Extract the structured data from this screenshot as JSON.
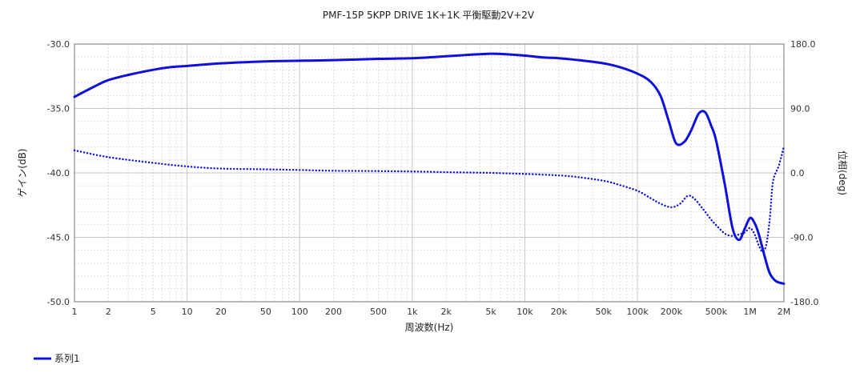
{
  "chart_data": {
    "type": "line",
    "title": "PMF-15P 5KPP DRIVE 1K+1K 平衡駆動2V+2V",
    "xlabel": "周波数(Hz)",
    "ylabel_left": "ゲイン(dB)",
    "ylabel_right": "位相(deg)",
    "x_scale": "log",
    "xlim": [
      1,
      2000000
    ],
    "ylim_left": [
      -50,
      -30
    ],
    "ylim_right": [
      -180,
      180
    ],
    "x_ticks": [
      {
        "value": 1,
        "label": "1"
      },
      {
        "value": 2,
        "label": "2"
      },
      {
        "value": 5,
        "label": "5"
      },
      {
        "value": 10,
        "label": "10"
      },
      {
        "value": 20,
        "label": "20"
      },
      {
        "value": 50,
        "label": "50"
      },
      {
        "value": 100,
        "label": "100"
      },
      {
        "value": 200,
        "label": "200"
      },
      {
        "value": 500,
        "label": "500"
      },
      {
        "value": 1000,
        "label": "1k"
      },
      {
        "value": 2000,
        "label": "2k"
      },
      {
        "value": 5000,
        "label": "5k"
      },
      {
        "value": 10000,
        "label": "10k"
      },
      {
        "value": 20000,
        "label": "20k"
      },
      {
        "value": 50000,
        "label": "50k"
      },
      {
        "value": 100000,
        "label": "100k"
      },
      {
        "value": 200000,
        "label": "200k"
      },
      {
        "value": 500000,
        "label": "500k"
      },
      {
        "value": 1000000,
        "label": "1M"
      },
      {
        "value": 2000000,
        "label": "2M"
      }
    ],
    "y_ticks_left": [
      {
        "value": -30,
        "label": "-30.0"
      },
      {
        "value": -35,
        "label": "-35.0"
      },
      {
        "value": -40,
        "label": "-40.0"
      },
      {
        "value": -45,
        "label": "-45.0"
      },
      {
        "value": -50,
        "label": "-50.0"
      }
    ],
    "y_ticks_right": [
      {
        "value": 180,
        "label": "180.0"
      },
      {
        "value": 90,
        "label": "90.0"
      },
      {
        "value": 0,
        "label": "0.0"
      },
      {
        "value": -90,
        "label": "-90.0"
      },
      {
        "value": -180,
        "label": "-180.0"
      }
    ],
    "grid": true,
    "legend_position": "bottom-left",
    "series": [
      {
        "name": "系列1",
        "axis": "left",
        "style": "solid",
        "color": "#1010dd",
        "x": [
          1,
          1.5,
          2,
          3,
          5,
          7,
          10,
          20,
          50,
          100,
          200,
          500,
          1000,
          2000,
          3000,
          5000,
          7000,
          10000,
          15000,
          20000,
          30000,
          50000,
          70000,
          100000,
          130000,
          160000,
          190000,
          220000,
          260000,
          300000,
          350000,
          400000,
          450000,
          500000,
          600000,
          700000,
          800000,
          900000,
          1000000,
          1100000,
          1200000,
          1350000,
          1500000,
          1700000,
          2000000
        ],
        "y": [
          -34.1,
          -33.3,
          -32.8,
          -32.4,
          -32.0,
          -31.8,
          -31.7,
          -31.5,
          -31.35,
          -31.3,
          -31.25,
          -31.15,
          -31.1,
          -30.95,
          -30.85,
          -30.75,
          -30.8,
          -30.9,
          -31.05,
          -31.1,
          -31.25,
          -31.5,
          -31.8,
          -32.3,
          -32.9,
          -34.0,
          -36.0,
          -37.7,
          -37.6,
          -36.7,
          -35.4,
          -35.3,
          -36.3,
          -37.5,
          -41.0,
          -44.3,
          -45.2,
          -44.3,
          -43.5,
          -43.9,
          -44.8,
          -46.5,
          -47.8,
          -48.4,
          -48.6
        ]
      },
      {
        "axis": "right",
        "style": "dotted",
        "color": "#1010dd",
        "x": [
          1,
          2,
          5,
          10,
          20,
          50,
          100,
          200,
          500,
          1000,
          2000,
          5000,
          10000,
          20000,
          30000,
          50000,
          70000,
          100000,
          130000,
          160000,
          200000,
          240000,
          280000,
          320000,
          380000,
          450000,
          500000,
          600000,
          700000,
          800000,
          900000,
          1000000,
          1100000,
          1200000,
          1300000,
          1400000,
          1500000,
          1600000,
          1800000,
          2000000
        ],
        "y": [
          31.5,
          22,
          14,
          9,
          6,
          5,
          4,
          3,
          2.5,
          2,
          1,
          0,
          -1.5,
          -3.5,
          -6,
          -11,
          -17,
          -25,
          -35,
          -43,
          -48,
          -43,
          -32,
          -36,
          -50,
          -65,
          -73,
          -85,
          -88,
          -86,
          -83,
          -77,
          -86,
          -102,
          -110,
          -99,
          -63,
          -12,
          10,
          37
        ]
      }
    ]
  }
}
